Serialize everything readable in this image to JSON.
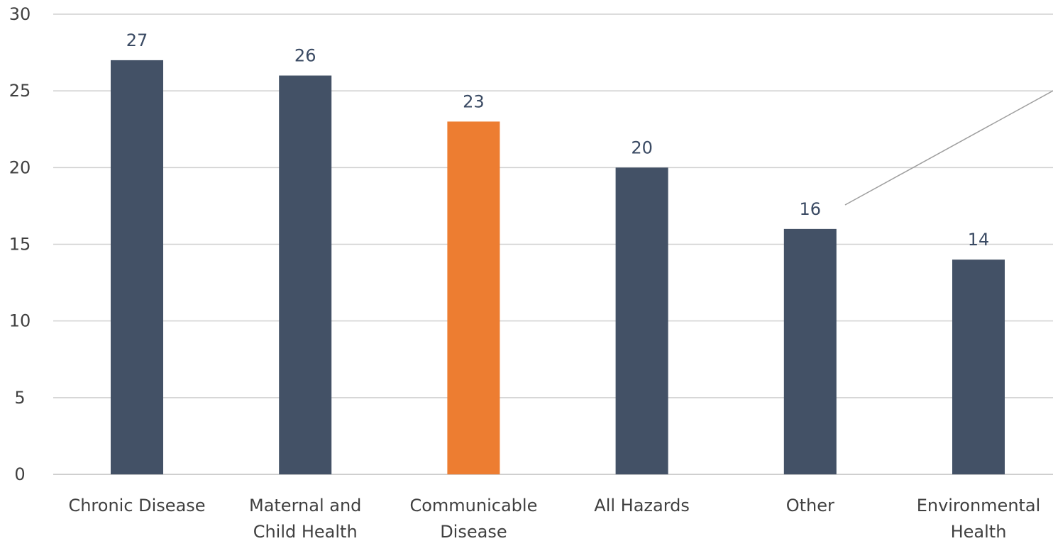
{
  "chart_data": {
    "type": "bar",
    "categories": [
      [
        "Chronic Disease"
      ],
      [
        "Maternal and",
        "Child Health"
      ],
      [
        "Communicable",
        "Disease"
      ],
      [
        "All Hazards"
      ],
      [
        "Other"
      ],
      [
        "Environmental",
        "Health"
      ]
    ],
    "values": [
      27,
      26,
      23,
      20,
      16,
      14
    ],
    "highlight_index": 2,
    "colors": {
      "bar": "#435166",
      "highlight": "#ed7d31",
      "grid": "#d0d0d0",
      "axis": "#bfbfbf",
      "callout_line": "#9e9e9e"
    },
    "ylim": [
      0,
      30
    ],
    "yticks": [
      0,
      5,
      10,
      15,
      20,
      25,
      30
    ],
    "grid": true,
    "title": "",
    "xlabel": "",
    "ylabel": ""
  }
}
